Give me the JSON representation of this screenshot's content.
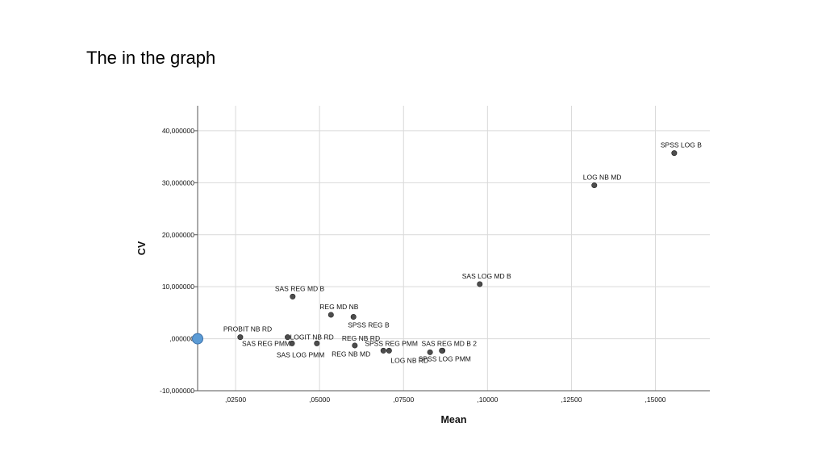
{
  "slide": {
    "title": "The in the graph"
  },
  "chart_data": {
    "type": "scatter",
    "title": "",
    "xlabel": "Mean",
    "ylabel": "CV",
    "xlim": [
      0.0137,
      0.1662
    ],
    "ylim": [
      -10,
      44.8
    ],
    "x_ticks": [
      0.025,
      0.05,
      0.075,
      0.1,
      0.125,
      0.15
    ],
    "x_tick_labels": [
      ",02500",
      ",05000",
      ",07500",
      ",10000",
      ",12500",
      ",15000"
    ],
    "y_ticks": [
      40,
      30,
      20,
      10,
      0,
      -10
    ],
    "y_tick_labels": [
      "40,000000",
      "30,000000",
      "20,000000",
      "10,000000",
      ",000000",
      "-10,000000"
    ],
    "grid": true,
    "points": [
      {
        "x": 0.1556,
        "y": 35.7,
        "label": "SPSS LOG B"
      },
      {
        "x": 0.1318,
        "y": 29.5,
        "label": "LOG NB MD"
      },
      {
        "x": 0.0977,
        "y": 10.5,
        "label": "SAS LOG MD B"
      },
      {
        "x": 0.042,
        "y": 8.1,
        "label": "SAS REG MD B"
      },
      {
        "x": 0.0534,
        "y": 4.6,
        "label": "REG MD NB"
      },
      {
        "x": 0.0601,
        "y": 4.2,
        "label": "SPSS REG B"
      },
      {
        "x": 0.0264,
        "y": 0.3,
        "label": "PROBIT NB RD"
      },
      {
        "x": 0.0405,
        "y": 0.3,
        "label": "LOGIT NB RD"
      },
      {
        "x": 0.0418,
        "y": -0.9,
        "label": "SAS REG PMM"
      },
      {
        "x": 0.0492,
        "y": -0.9,
        "label": "SAS LOG PMM"
      },
      {
        "x": 0.0605,
        "y": -1.3,
        "label": "REG NB RD"
      },
      {
        "x": 0.069,
        "y": -2.3,
        "label": "REG NB MD"
      },
      {
        "x": 0.0707,
        "y": -2.3,
        "label": "SPSS REG PMM"
      },
      {
        "x": 0.0829,
        "y": -2.6,
        "label": "LOG NB RD"
      },
      {
        "x": 0.0866,
        "y": -2.3,
        "label": "SAS REG MD B 2"
      },
      {
        "x": 0.0864,
        "y": -2.3,
        "label": "SPSS LOG PMM"
      }
    ],
    "highlight_point": {
      "x": 0.0137,
      "y": 0.0,
      "color": "#5b9bd5"
    },
    "colors": {
      "point": "#4d4d4d",
      "grid": "#d9d9d9",
      "axis": "#555555"
    }
  }
}
